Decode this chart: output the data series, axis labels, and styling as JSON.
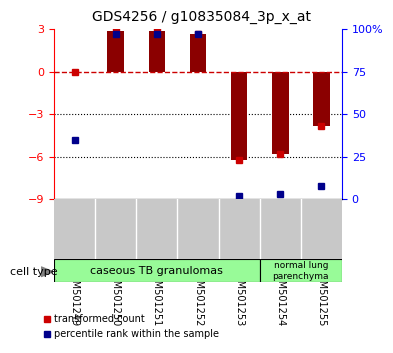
{
  "title": "GDS4256 / g10835084_3p_x_at",
  "samples": [
    "GSM501249",
    "GSM501250",
    "GSM501251",
    "GSM501252",
    "GSM501253",
    "GSM501254",
    "GSM501255"
  ],
  "transformed_counts": [
    0.0,
    2.9,
    2.9,
    2.7,
    -6.2,
    -5.8,
    -3.8
  ],
  "percentile_ranks": [
    35,
    97,
    97,
    97,
    2,
    3,
    8
  ],
  "ylim_left": [
    -9,
    3
  ],
  "ylim_right": [
    0,
    100
  ],
  "yticks_left": [
    3,
    0,
    -3,
    -6,
    -9
  ],
  "yticks_right": [
    100,
    75,
    50,
    25,
    0
  ],
  "ytick_labels_right": [
    "100%",
    "75",
    "50",
    "25",
    "0"
  ],
  "bar_color": "#8B0000",
  "dot_color_red": "#CC0000",
  "dot_color_blue": "#00008B",
  "background_color": "#FFFFFF",
  "plot_bg_color": "#FFFFFF",
  "legend_items": [
    {
      "label": "transformed count",
      "color": "#CC0000"
    },
    {
      "label": "percentile rank within the sample",
      "color": "#00008B"
    }
  ],
  "cell_type_label": "cell type",
  "ct_group1_label": "caseous TB granulomas",
  "ct_group2_label": "normal lung\nparenchyma",
  "ct_color": "#98FB98",
  "sample_bg_color": "#C8C8C8"
}
